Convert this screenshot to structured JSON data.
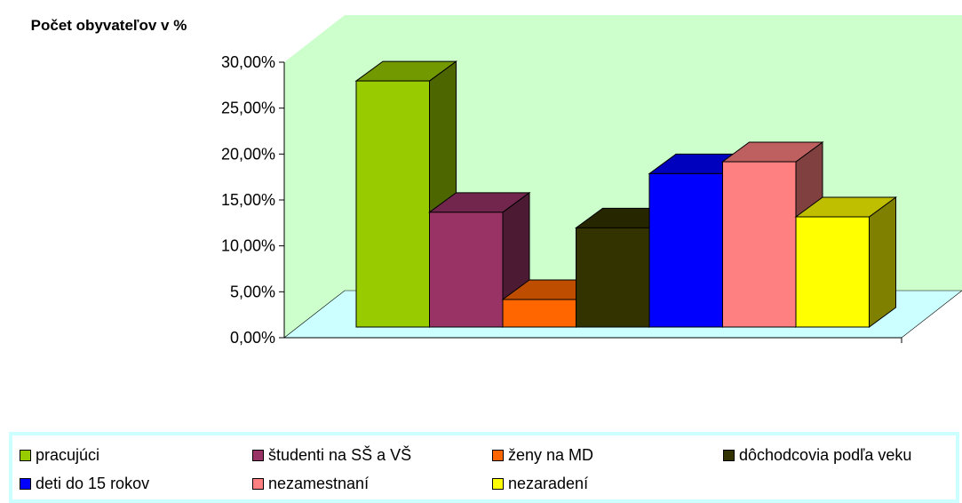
{
  "chart_data": {
    "type": "bar",
    "ylabel": "Počet obyvateľov v %",
    "ylim": [
      0,
      30
    ],
    "y_ticks": [
      "0,00%",
      "5,00%",
      "10,00%",
      "15,00%",
      "20,00%",
      "25,00%",
      "30,00%"
    ],
    "y_tick_values": [
      0,
      5,
      10,
      15,
      20,
      25,
      30
    ],
    "categories": [
      "pracujúci",
      "študenti na SŠ a VŠ",
      "ženy na MD",
      "dôchodcovia podľa veku",
      "deti do 15 rokov",
      "nezamestnaní",
      "nezaradení"
    ],
    "values": [
      26.8,
      12.5,
      3.0,
      10.8,
      16.7,
      18.0,
      12.0
    ],
    "colors": [
      "#99cc00",
      "#993366",
      "#ff6600",
      "#333300",
      "#0000ff",
      "#ff8080",
      "#ffff00"
    ],
    "wall_color": "#ccffcc",
    "floor_color": "#ccffff",
    "grid": false,
    "style": "3d-column",
    "legend_position": "bottom"
  }
}
